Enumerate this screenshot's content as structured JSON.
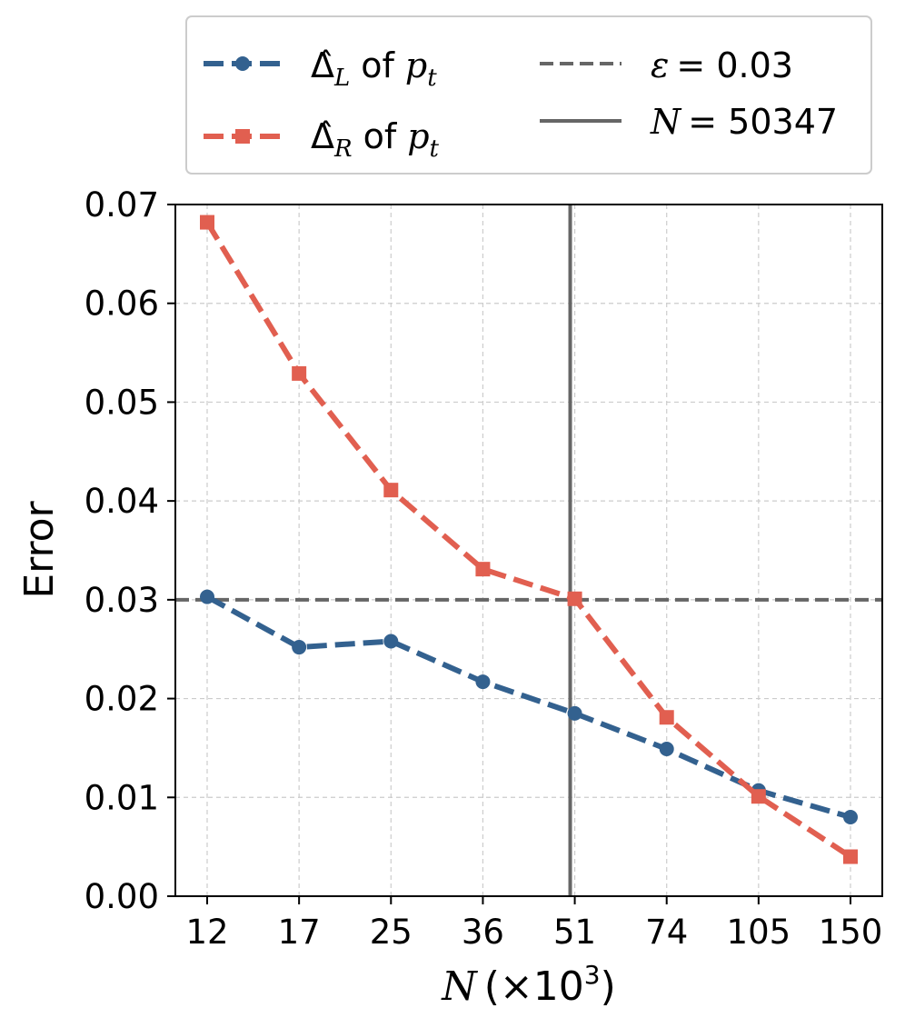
{
  "chart_data": {
    "type": "line",
    "xlabel_var": "N",
    "xlabel_unit": "(×10",
    "xlabel_exp": "3",
    "xlabel_close": ")",
    "ylabel": "Error",
    "categories": [
      "12",
      "17",
      "25",
      "36",
      "51",
      "74",
      "105",
      "150"
    ],
    "ylim": [
      0,
      0.07
    ],
    "yticks": [
      "0.00",
      "0.01",
      "0.02",
      "0.03",
      "0.04",
      "0.05",
      "0.06",
      "0.07"
    ],
    "ytick_values": [
      0,
      0.01,
      0.02,
      0.03,
      0.04,
      0.05,
      0.06,
      0.07
    ],
    "grid": true,
    "series": [
      {
        "name": "Δ̂_L of p_t",
        "symbol": "Δ̂",
        "sub": "L",
        "of_text": "of",
        "var": "p",
        "var_sub": "t",
        "color": "#33618f",
        "marker": "circle",
        "values": [
          0.0303,
          0.0252,
          0.0258,
          0.0217,
          0.0185,
          0.0149,
          0.0107,
          0.008
        ]
      },
      {
        "name": "Δ̂_R of p_t",
        "symbol": "Δ̂",
        "sub": "R",
        "of_text": "of",
        "var": "p",
        "var_sub": "t",
        "color": "#e15f50",
        "marker": "square",
        "values": [
          0.0682,
          0.0529,
          0.0411,
          0.0331,
          0.0301,
          0.0181,
          0.0101,
          0.004
        ]
      }
    ],
    "reference_lines": {
      "epsilon": {
        "label_var": "ε",
        "label_rest": "= 0.03",
        "value": 0.03,
        "style": "dashed",
        "color": "#666666"
      },
      "n_line": {
        "label_var": "N",
        "label_rest": "= 50347",
        "value_index": 3.95,
        "style": "solid",
        "color": "#666666"
      }
    },
    "legend_placement": "above plot"
  }
}
